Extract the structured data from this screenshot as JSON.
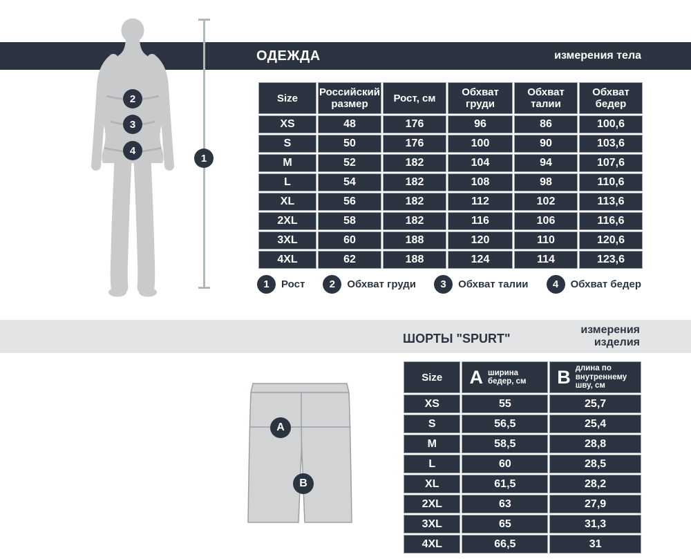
{
  "colors": {
    "navy": "#2b3440",
    "bar_gray": "#e3e4e5",
    "silhouette_gray": "#c9cacc",
    "line_gray": "#b3b6ba",
    "cell_border": "#9aa1ab",
    "shorts_fill": "#d2d3d5",
    "shorts_outline": "#9b9fa4",
    "text_white": "#ffffff"
  },
  "body_section": {
    "title": "ОДЕЖДА",
    "subtitle": "измерения тела",
    "table": {
      "headers": [
        "Size",
        "Российский размер",
        "Рост, см",
        "Обхват груди",
        "Обхват талии",
        "Обхват бедер"
      ],
      "rows": [
        [
          "XS",
          "48",
          "176",
          "96",
          "86",
          "100,6"
        ],
        [
          "S",
          "50",
          "176",
          "100",
          "90",
          "103,6"
        ],
        [
          "M",
          "52",
          "182",
          "104",
          "94",
          "107,6"
        ],
        [
          "L",
          "54",
          "182",
          "108",
          "98",
          "110,6"
        ],
        [
          "XL",
          "56",
          "182",
          "112",
          "102",
          "113,6"
        ],
        [
          "2XL",
          "58",
          "182",
          "116",
          "106",
          "116,6"
        ],
        [
          "3XL",
          "60",
          "188",
          "120",
          "110",
          "120,6"
        ],
        [
          "4XL",
          "62",
          "188",
          "124",
          "114",
          "123,6"
        ]
      ]
    },
    "markers": {
      "height": "1",
      "chest": "2",
      "waist": "3",
      "hips": "4"
    },
    "legend": [
      {
        "num": "1",
        "label": "Рост"
      },
      {
        "num": "2",
        "label": "Обхват груди"
      },
      {
        "num": "3",
        "label": "Обхват талии"
      },
      {
        "num": "4",
        "label": "Обхват бедер"
      }
    ]
  },
  "product_section": {
    "title": "ШОРТЫ \"SPURT\"",
    "subtitle_line1": "измерения",
    "subtitle_line2": "изделия",
    "table": {
      "col_size": "Size",
      "col_a_letter": "A",
      "col_a_line1": "ширина",
      "col_a_line2": "бедер, см",
      "col_b_letter": "B",
      "col_b_line1": "длина по",
      "col_b_line2": "внутреннему",
      "col_b_line3": "шву, см",
      "rows": [
        [
          "XS",
          "55",
          "25,7"
        ],
        [
          "S",
          "56,5",
          "25,4"
        ],
        [
          "M",
          "58,5",
          "28,8"
        ],
        [
          "L",
          "60",
          "28,5"
        ],
        [
          "XL",
          "61,5",
          "28,2"
        ],
        [
          "2XL",
          "63",
          "27,9"
        ],
        [
          "3XL",
          "65",
          "31,3"
        ],
        [
          "4XL",
          "66,5",
          "31"
        ]
      ]
    },
    "markers": {
      "a": "A",
      "b": "B"
    }
  }
}
